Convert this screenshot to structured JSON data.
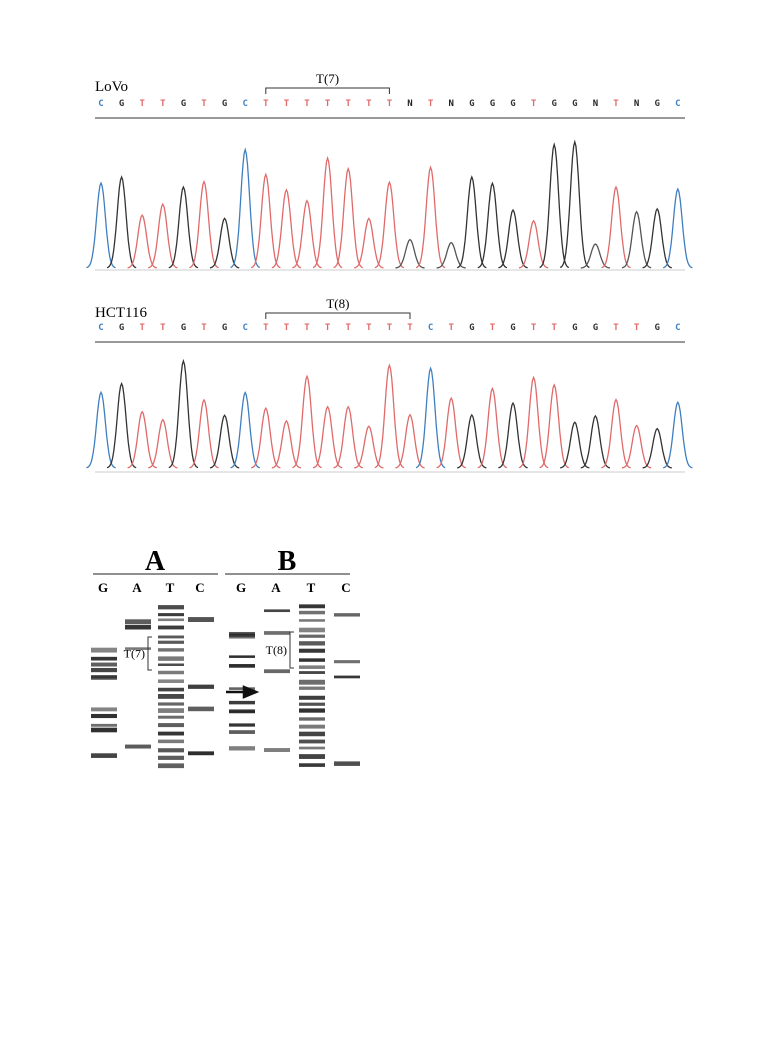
{
  "chromatograms": [
    {
      "sample": "LoVo",
      "repeat_label": "T(7)",
      "sequence": [
        "C",
        "G",
        "T",
        "T",
        "G",
        "T",
        "G",
        "C",
        "T",
        "T",
        "T",
        "T",
        "T",
        "T",
        "T",
        "N",
        "T",
        "N",
        "G",
        "G",
        "G",
        "T",
        "G",
        "G",
        "N",
        "T",
        "N",
        "G",
        "C"
      ]
    },
    {
      "sample": "HCT116",
      "repeat_label": "T(8)",
      "sequence": [
        "C",
        "G",
        "T",
        "T",
        "G",
        "T",
        "G",
        "C",
        "T",
        "T",
        "T",
        "T",
        "T",
        "T",
        "T",
        "T",
        "C",
        "T",
        "G",
        "T",
        "G",
        "T",
        "T",
        "G",
        "G",
        "T",
        "T",
        "G",
        "C"
      ]
    }
  ],
  "base_colors": {
    "C": "#3f7fc0",
    "G": "#333333",
    "T": "#e06a6a",
    "N": "#222222"
  },
  "gels": [
    {
      "panel": "A",
      "lanes": [
        "G",
        "A",
        "T",
        "C"
      ],
      "repeat_label": "T(7)"
    },
    {
      "panel": "B",
      "lanes": [
        "G",
        "A",
        "T",
        "C"
      ],
      "repeat_label": "T(8)"
    }
  ]
}
